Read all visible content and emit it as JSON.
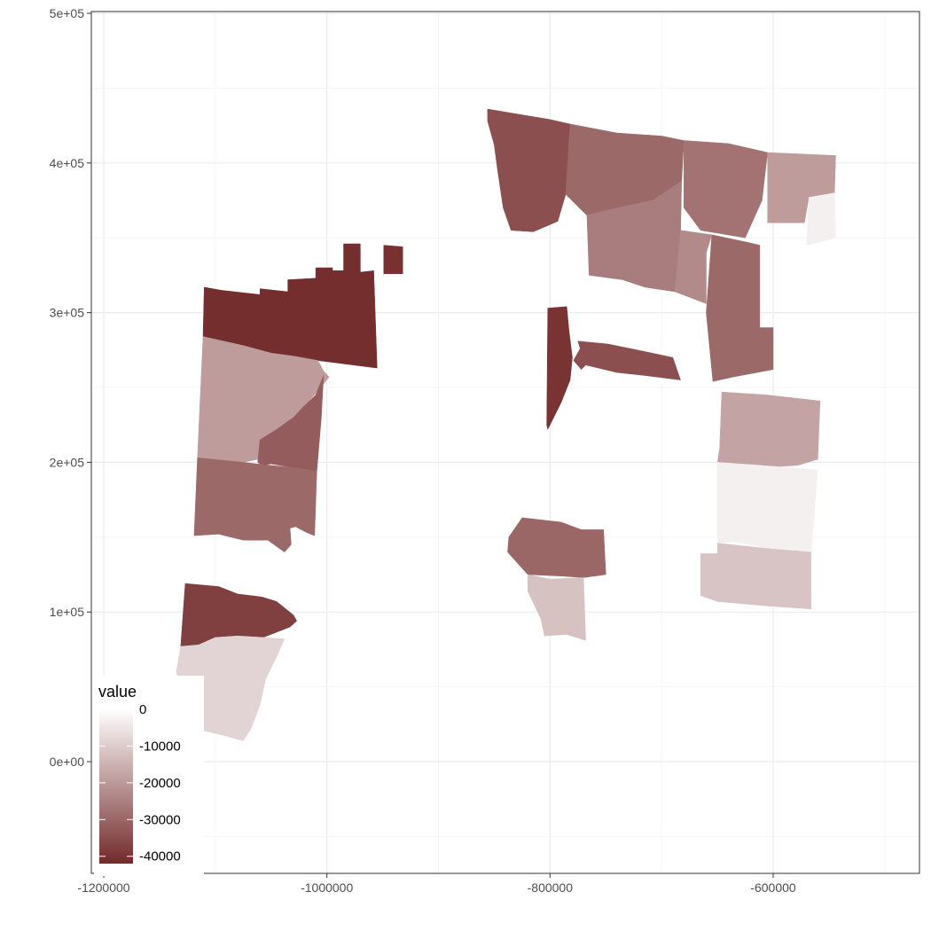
{
  "chart_data": {
    "type": "choropleth",
    "title": "",
    "xlabel": "",
    "ylabel": "",
    "xlim": [
      -1200000,
      -475000
    ],
    "ylim": [
      -70000,
      500000
    ],
    "x_ticks": [
      -1200000,
      -1000000,
      -800000,
      -600000
    ],
    "x_tick_labels": [
      "-1200000",
      "-1000000",
      "-800000",
      "-600000"
    ],
    "y_ticks": [
      0,
      100000,
      200000,
      300000,
      400000,
      500000
    ],
    "y_tick_labels": [
      "0e+00",
      "1e+05",
      "2e+05",
      "3e+05",
      "4e+05",
      "5e+05"
    ],
    "grid": true,
    "theme": "bw",
    "legend": {
      "title": "value",
      "position": "bottom-left",
      "breaks": [
        0,
        -10000,
        -20000,
        -30000,
        -40000
      ],
      "break_labels": [
        "0",
        "-10000",
        "-20000",
        "-30000",
        "-40000"
      ],
      "limits": [
        -42000,
        0
      ],
      "color_low": "#722929",
      "color_high": "#ffffff"
    },
    "regions": [
      {
        "value": -41000,
        "coords": [
          [
            -1110000,
            317000
          ],
          [
            -1095000,
            315000
          ],
          [
            -1060000,
            312000
          ],
          [
            -1060000,
            316000
          ],
          [
            -1035000,
            314000
          ],
          [
            -1035000,
            322000
          ],
          [
            -1010000,
            323000
          ],
          [
            -1010000,
            330000
          ],
          [
            -995000,
            330000
          ],
          [
            -995000,
            328000
          ],
          [
            -985000,
            328000
          ],
          [
            -985000,
            346000
          ],
          [
            -970000,
            346000
          ],
          [
            -970000,
            327000
          ],
          [
            -958000,
            328000
          ],
          [
            -955000,
            263000
          ],
          [
            -1008000,
            268000
          ],
          [
            -1030000,
            271000
          ],
          [
            -1050000,
            273000
          ],
          [
            -1075000,
            278000
          ],
          [
            -1111000,
            284000
          ]
        ]
      },
      {
        "value": -40500,
        "coords": [
          [
            -949000,
            345000
          ],
          [
            -932000,
            344000
          ],
          [
            -932000,
            326000
          ],
          [
            -949000,
            326000
          ]
        ]
      },
      {
        "value": -19500,
        "coords": [
          [
            -1111000,
            284000
          ],
          [
            -1075000,
            278000
          ],
          [
            -1050000,
            273000
          ],
          [
            -1030000,
            271000
          ],
          [
            -1008000,
            268000
          ],
          [
            -1003000,
            261000
          ],
          [
            -998000,
            257000
          ],
          [
            -1010000,
            246000
          ],
          [
            -1020000,
            238000
          ],
          [
            -1032000,
            228000
          ],
          [
            -1045000,
            222000
          ],
          [
            -1058000,
            214000
          ],
          [
            -1062000,
            202000
          ],
          [
            -1075000,
            200000
          ],
          [
            -1116000,
            203000
          ]
        ]
      },
      {
        "value": -32000,
        "coords": [
          [
            -1003000,
            258000
          ],
          [
            -1010000,
            245000
          ],
          [
            -1020000,
            238000
          ],
          [
            -1030000,
            230000
          ],
          [
            -1045000,
            222000
          ],
          [
            -1060000,
            215000
          ],
          [
            -1062000,
            200000
          ],
          [
            -1058000,
            198000
          ],
          [
            -1050000,
            199000
          ],
          [
            -1035000,
            197000
          ],
          [
            -1025000,
            196000
          ],
          [
            -1009000,
            194000
          ],
          [
            -1005000,
            230000
          ]
        ]
      },
      {
        "value": -29500,
        "coords": [
          [
            -1116000,
            203000
          ],
          [
            -1075000,
            200000
          ],
          [
            -1063000,
            199000
          ],
          [
            -1025000,
            196000
          ],
          [
            -1009000,
            194000
          ],
          [
            -1011000,
            151000
          ],
          [
            -1018000,
            153000
          ],
          [
            -1028000,
            157000
          ],
          [
            -1033000,
            156000
          ],
          [
            -1032000,
            145000
          ],
          [
            -1038000,
            140000
          ],
          [
            -1053000,
            148000
          ],
          [
            -1075000,
            148000
          ],
          [
            -1097000,
            152000
          ],
          [
            -1119000,
            151000
          ]
        ]
      },
      {
        "value": -37500,
        "coords": [
          [
            -1127000,
            119000
          ],
          [
            -1097000,
            117000
          ],
          [
            -1080000,
            112000
          ],
          [
            -1058000,
            110000
          ],
          [
            -1045000,
            107000
          ],
          [
            -1030000,
            98000
          ],
          [
            -1027000,
            94000
          ],
          [
            -1033000,
            90000
          ],
          [
            -1057000,
            83000
          ],
          [
            -1080000,
            84000
          ],
          [
            -1100000,
            83000
          ],
          [
            -1115000,
            78000
          ],
          [
            -1131000,
            77000
          ]
        ]
      },
      {
        "value": -8500,
        "coords": [
          [
            -1131000,
            77000
          ],
          [
            -1115000,
            78000
          ],
          [
            -1100000,
            83000
          ],
          [
            -1080000,
            84000
          ],
          [
            -1057000,
            83000
          ],
          [
            -1038000,
            82000
          ],
          [
            -1045000,
            70000
          ],
          [
            -1055000,
            55000
          ],
          [
            -1060000,
            38000
          ],
          [
            -1068000,
            22000
          ],
          [
            -1075000,
            14000
          ],
          [
            -1080000,
            15000
          ],
          [
            -1095000,
            18000
          ],
          [
            -1118000,
            22000
          ],
          [
            -1135000,
            60000
          ]
        ]
      },
      {
        "value": -34500,
        "coords": [
          [
            -856000,
            436000
          ],
          [
            -800000,
            429000
          ],
          [
            -782000,
            426000
          ],
          [
            -786000,
            379000
          ],
          [
            -793000,
            361000
          ],
          [
            -815000,
            354000
          ],
          [
            -835000,
            355000
          ],
          [
            -842000,
            370000
          ],
          [
            -847000,
            395000
          ],
          [
            -850000,
            412000
          ],
          [
            -856000,
            428000
          ]
        ]
      },
      {
        "value": -29500,
        "coords": [
          [
            -782000,
            426000
          ],
          [
            -740000,
            420000
          ],
          [
            -700000,
            418000
          ],
          [
            -680000,
            415000
          ],
          [
            -682000,
            388000
          ],
          [
            -708000,
            375000
          ],
          [
            -740000,
            370000
          ],
          [
            -767000,
            365000
          ],
          [
            -786000,
            379000
          ]
        ]
      },
      {
        "value": -27500,
        "coords": [
          [
            -680000,
            415000
          ],
          [
            -640000,
            413000
          ],
          [
            -605000,
            407000
          ],
          [
            -610000,
            375000
          ],
          [
            -625000,
            350000
          ],
          [
            -665000,
            355000
          ],
          [
            -680000,
            370000
          ]
        ]
      },
      {
        "value": -19500,
        "coords": [
          [
            -605000,
            407000
          ],
          [
            -544000,
            405000
          ],
          [
            -545000,
            380000
          ],
          [
            -568000,
            377000
          ],
          [
            -572000,
            360000
          ],
          [
            -605000,
            360000
          ]
        ]
      },
      {
        "value": -3000,
        "coords": [
          [
            -568000,
            377000
          ],
          [
            -545000,
            380000
          ],
          [
            -544000,
            350000
          ],
          [
            -570000,
            345000
          ]
        ]
      },
      {
        "value": -25500,
        "coords": [
          [
            -767000,
            365000
          ],
          [
            -740000,
            370000
          ],
          [
            -708000,
            375000
          ],
          [
            -682000,
            388000
          ],
          [
            -683000,
            355000
          ],
          [
            -688000,
            314000
          ],
          [
            -715000,
            317000
          ],
          [
            -735000,
            322000
          ],
          [
            -765000,
            325000
          ]
        ]
      },
      {
        "value": -23000,
        "coords": [
          [
            -683000,
            355000
          ],
          [
            -655000,
            352000
          ],
          [
            -660000,
            340000
          ],
          [
            -660000,
            306000
          ],
          [
            -688000,
            314000
          ]
        ]
      },
      {
        "value": -29500,
        "coords": [
          [
            -655000,
            352000
          ],
          [
            -623000,
            347000
          ],
          [
            -612000,
            345000
          ],
          [
            -612000,
            290000
          ],
          [
            -600000,
            290000
          ],
          [
            -600000,
            262000
          ],
          [
            -636000,
            257000
          ],
          [
            -654000,
            254000
          ],
          [
            -660000,
            300000
          ]
        ]
      },
      {
        "value": -34500,
        "coords": [
          [
            -775000,
            281000
          ],
          [
            -748000,
            279000
          ],
          [
            -715000,
            274000
          ],
          [
            -690000,
            270000
          ],
          [
            -683000,
            255000
          ],
          [
            -715000,
            258000
          ],
          [
            -740000,
            260000
          ],
          [
            -768000,
            265000
          ],
          [
            -772000,
            262000
          ],
          [
            -779000,
            268000
          ],
          [
            -773000,
            276000
          ]
        ]
      },
      {
        "value": -40000,
        "coords": [
          [
            -802000,
            303000
          ],
          [
            -785000,
            304000
          ],
          [
            -783000,
            288000
          ],
          [
            -780000,
            270000
          ],
          [
            -782000,
            255000
          ],
          [
            -790000,
            240000
          ],
          [
            -802000,
            222000
          ],
          [
            -803000,
            225000
          ]
        ]
      },
      {
        "value": -18000,
        "coords": [
          [
            -646000,
            247000
          ],
          [
            -606000,
            245000
          ],
          [
            -558000,
            241000
          ],
          [
            -560000,
            202000
          ],
          [
            -578000,
            198000
          ],
          [
            -600000,
            197000
          ],
          [
            -650000,
            200000
          ],
          [
            -648000,
            209000
          ]
        ]
      },
      {
        "value": -3000,
        "coords": [
          [
            -650000,
            200000
          ],
          [
            -612000,
            198000
          ],
          [
            -560000,
            195000
          ],
          [
            -566000,
            140000
          ],
          [
            -600000,
            142000
          ],
          [
            -635000,
            147000
          ],
          [
            -650000,
            146000
          ]
        ]
      },
      {
        "value": -11500,
        "coords": [
          [
            -650000,
            146000
          ],
          [
            -600000,
            142000
          ],
          [
            -566000,
            140000
          ],
          [
            -566000,
            102000
          ],
          [
            -605000,
            104000
          ],
          [
            -650000,
            107000
          ],
          [
            -665000,
            111000
          ],
          [
            -665000,
            139000
          ],
          [
            -650000,
            139000
          ]
        ]
      },
      {
        "value": -30000,
        "coords": [
          [
            -825000,
            163000
          ],
          [
            -790000,
            160000
          ],
          [
            -772000,
            155000
          ],
          [
            -752000,
            155000
          ],
          [
            -750000,
            125000
          ],
          [
            -770000,
            123000
          ],
          [
            -790000,
            124000
          ],
          [
            -820000,
            125000
          ],
          [
            -838000,
            140000
          ],
          [
            -837000,
            150000
          ]
        ]
      },
      {
        "value": -12000,
        "coords": [
          [
            -820000,
            125000
          ],
          [
            -800000,
            122000
          ],
          [
            -770000,
            123000
          ],
          [
            -768000,
            81000
          ],
          [
            -785000,
            85000
          ],
          [
            -805000,
            84000
          ],
          [
            -808000,
            95000
          ],
          [
            -820000,
            114000
          ]
        ]
      }
    ]
  }
}
